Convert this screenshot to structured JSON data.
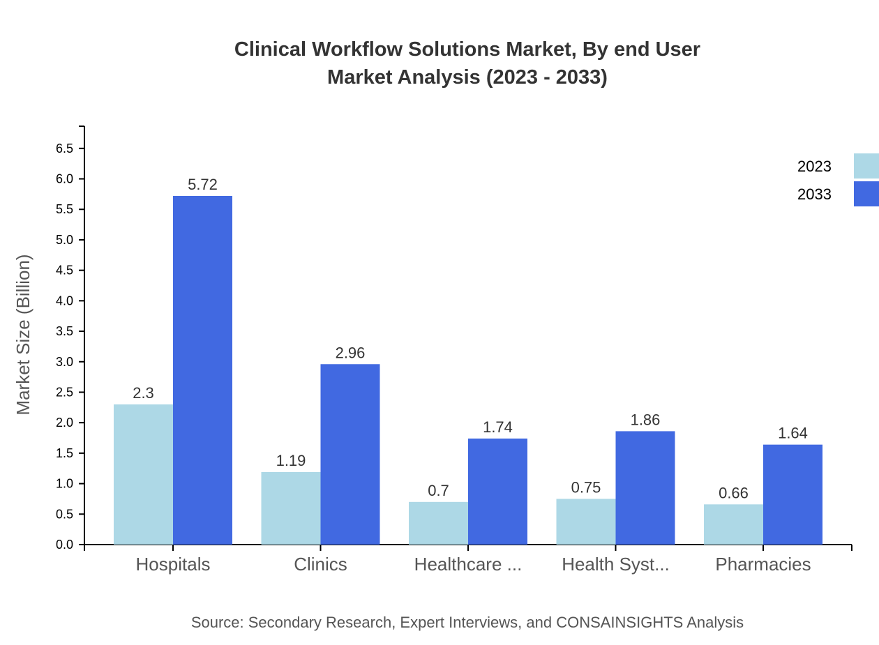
{
  "chart_data": {
    "type": "bar",
    "title": "Clinical Workflow Solutions Market, By end User",
    "subtitle": "Market Analysis (2023 - 2033)",
    "xlabel": "",
    "ylabel": "Market Size (Billion)",
    "source": "Source: Secondary Research, Expert Interviews, and CONSAINSIGHTS Analysis",
    "categories": [
      "Hospitals",
      "Clinics",
      "Healthcare ...",
      "Health Syst...",
      "Pharmacies"
    ],
    "series": [
      {
        "name": "2023",
        "color": "#add8e6",
        "values": [
          2.3,
          1.19,
          0.7,
          0.75,
          0.66
        ]
      },
      {
        "name": "2033",
        "color": "#4169e1",
        "values": [
          5.72,
          2.96,
          1.74,
          1.86,
          1.64
        ]
      }
    ],
    "ylim": [
      0,
      6.864
    ],
    "yticks": [
      0.0,
      0.5,
      1.0,
      1.5,
      2.0,
      2.5,
      3.0,
      3.5,
      4.0,
      4.5,
      5.0,
      5.5,
      6.0,
      6.5
    ],
    "grid": false,
    "legend": "top-right"
  }
}
